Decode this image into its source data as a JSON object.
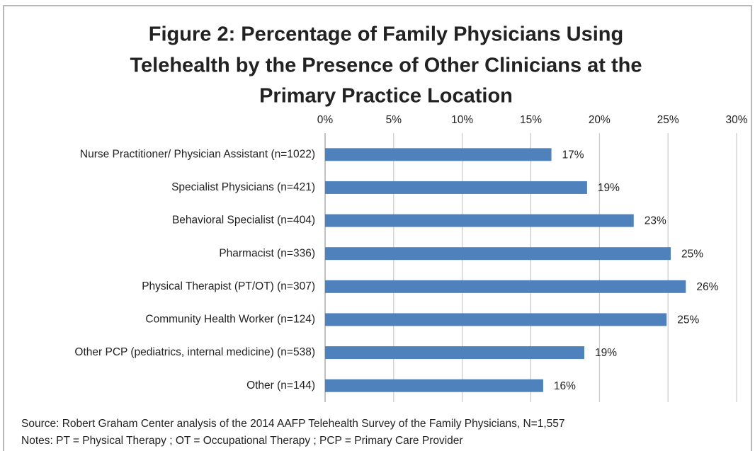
{
  "chart_data": {
    "type": "barh",
    "title": [
      "Figure 2: Percentage of Family Physicians Using",
      "Telehealth by the Presence of Other Clinicians at the",
      "Primary Practice Location"
    ],
    "categories": [
      "Nurse Practitioner/ Physician Assistant (n=1022)",
      "Specialist Physicians (n=421)",
      "Behavioral Specialist (n=404)",
      "Pharmacist (n=336)",
      "Physical Therapist (PT/OT) (n=307)",
      "Community Health Worker (n=124)",
      "Other PCP (pediatrics, internal medicine) (n=538)",
      "Other (n=144)"
    ],
    "values": [
      16.5,
      19.1,
      22.5,
      25.2,
      26.3,
      24.9,
      18.9,
      15.9
    ],
    "value_labels": [
      "17%",
      "19%",
      "23%",
      "25%",
      "26%",
      "25%",
      "19%",
      "16%"
    ],
    "color": "#4f81bd",
    "xlim": [
      0,
      30
    ],
    "xticks": [
      {
        "value": 0,
        "label": "0%"
      },
      {
        "value": 5,
        "label": "5%"
      },
      {
        "value": 10,
        "label": "10%"
      },
      {
        "value": 15,
        "label": "15%"
      },
      {
        "value": 20,
        "label": "20%"
      },
      {
        "value": 25,
        "label": "25%"
      },
      {
        "value": 30,
        "label": "30%"
      }
    ],
    "grid": true,
    "source": "Source: Robert Graham Center analysis of the 2014 AAFP Telehealth Survey of the Family Physicians, N=1,557",
    "notes": "Notes: PT = Physical  Therapy ; OT =  Occupational Therapy ; PCP =  Primary Care Provider"
  }
}
